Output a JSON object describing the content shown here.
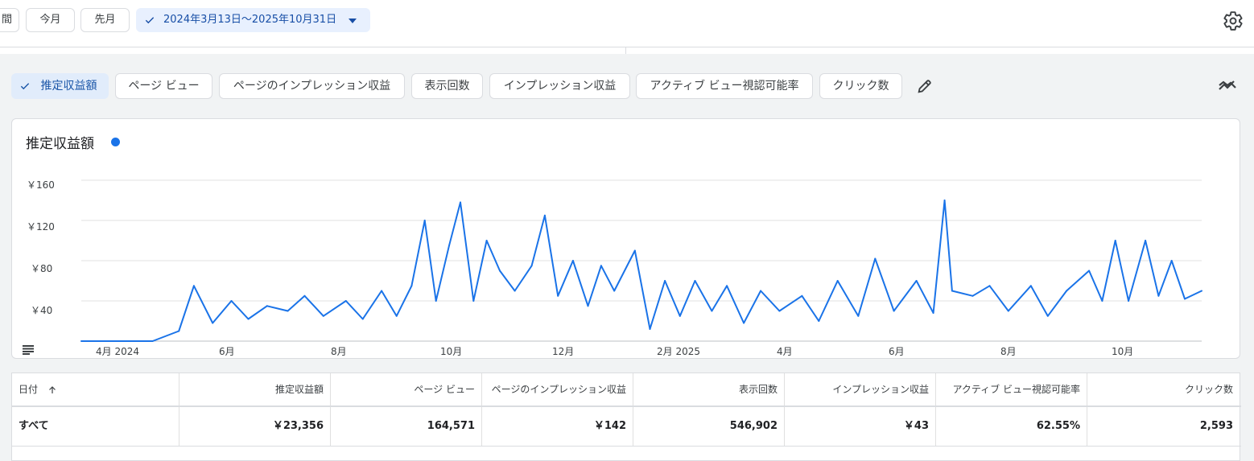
{
  "top_chips": {
    "partial": "間",
    "this_month": "今月",
    "last_month": "先月",
    "date_range": "2024年3月13日～2025年10月31日"
  },
  "metric_chips": [
    {
      "label": "推定収益額",
      "selected": true
    },
    {
      "label": "ページ ビュー",
      "selected": false
    },
    {
      "label": "ページのインプレッション収益",
      "selected": false
    },
    {
      "label": "表示回数",
      "selected": false
    },
    {
      "label": "インプレッション収益",
      "selected": false
    },
    {
      "label": "アクティブ ビュー視認可能率",
      "selected": false
    },
    {
      "label": "クリック数",
      "selected": false
    }
  ],
  "icons": {
    "settings": "gear-icon",
    "edit": "pencil-icon",
    "compare": "trend-compare-icon",
    "legend": "list-icon",
    "sort": "arrow-up-icon"
  },
  "colors": {
    "accent": "#1a73e8",
    "selected_chip": "#e8f0fe"
  },
  "chart_data": {
    "type": "line",
    "title": "推定収益額",
    "y_ticks": [
      "￥40",
      "￥80",
      "￥120",
      "￥160"
    ],
    "ylim": [
      0,
      160
    ],
    "x_ticks": [
      "4月 2024",
      "6月",
      "8月",
      "10月",
      "12月",
      "2月 2025",
      "4月",
      "6月",
      "8月",
      "10月"
    ],
    "x_range": [
      "2024-03-13",
      "2025-10-31"
    ],
    "grid": true,
    "series": [
      {
        "name": "推定収益額",
        "color": "#1a73e8",
        "x": [
          "2024-03-13",
          "2024-04-20",
          "2024-05-04",
          "2024-05-12",
          "2024-05-22",
          "2024-06-01",
          "2024-06-10",
          "2024-06-20",
          "2024-07-01",
          "2024-07-10",
          "2024-07-20",
          "2024-08-01",
          "2024-08-10",
          "2024-08-20",
          "2024-08-28",
          "2024-09-05",
          "2024-09-12",
          "2024-09-18",
          "2024-09-25",
          "2024-10-01",
          "2024-10-08",
          "2024-10-15",
          "2024-10-22",
          "2024-10-30",
          "2024-11-08",
          "2024-11-15",
          "2024-11-22",
          "2024-11-30",
          "2024-12-08",
          "2024-12-15",
          "2024-12-22",
          "2025-01-02",
          "2025-01-10",
          "2025-01-18",
          "2025-01-26",
          "2025-02-03",
          "2025-02-12",
          "2025-02-20",
          "2025-03-01",
          "2025-03-10",
          "2025-03-20",
          "2025-04-01",
          "2025-04-10",
          "2025-04-20",
          "2025-05-01",
          "2025-05-10",
          "2025-05-20",
          "2025-06-01",
          "2025-06-10",
          "2025-06-16",
          "2025-06-20",
          "2025-07-01",
          "2025-07-10",
          "2025-07-20",
          "2025-08-01",
          "2025-08-10",
          "2025-08-20",
          "2025-09-01",
          "2025-09-08",
          "2025-09-15",
          "2025-09-22",
          "2025-10-01",
          "2025-10-08",
          "2025-10-15",
          "2025-10-22",
          "2025-10-31"
        ],
        "values": [
          0,
          0,
          10,
          55,
          18,
          40,
          22,
          35,
          30,
          45,
          25,
          40,
          22,
          50,
          25,
          55,
          120,
          40,
          95,
          138,
          40,
          100,
          70,
          50,
          75,
          125,
          45,
          80,
          35,
          75,
          50,
          90,
          12,
          60,
          25,
          60,
          30,
          55,
          18,
          50,
          30,
          45,
          20,
          60,
          25,
          82,
          30,
          60,
          28,
          140,
          50,
          45,
          55,
          30,
          55,
          25,
          50,
          70,
          40,
          100,
          40,
          100,
          45,
          80,
          42,
          50
        ]
      }
    ]
  },
  "table": {
    "headers": [
      "日付",
      "推定収益額",
      "ページ ビュー",
      "ページのインプレッション収益",
      "表示回数",
      "インプレッション収益",
      "アクティブ ビュー視認可能率",
      "クリック数"
    ],
    "total_row": [
      "すべて",
      "￥23,356",
      "164,571",
      "￥142",
      "546,902",
      "￥43",
      "62.55%",
      "2,593"
    ]
  }
}
